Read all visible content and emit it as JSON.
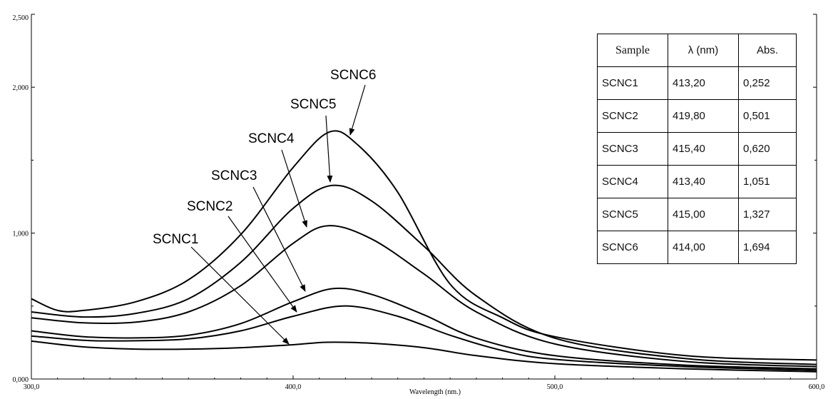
{
  "chart_data": {
    "type": "line",
    "xlabel": "Wavelength (nm.)",
    "ylabel": "",
    "xlim": [
      300,
      600
    ],
    "ylim": [
      0,
      2.5
    ],
    "x_ticks": [
      "300,0",
      "400,0",
      "500,0",
      "600,0"
    ],
    "y_ticks": [
      "0,000",
      "1,000",
      "2,000",
      "2,500"
    ],
    "grid": false,
    "series": [
      {
        "name": "SCNC1",
        "peak_nm": 413.2,
        "peak_abs": 0.252,
        "points": [
          [
            300,
            0.26
          ],
          [
            320,
            0.22
          ],
          [
            340,
            0.205
          ],
          [
            360,
            0.205
          ],
          [
            380,
            0.215
          ],
          [
            400,
            0.235
          ],
          [
            413.2,
            0.252
          ],
          [
            430,
            0.245
          ],
          [
            450,
            0.215
          ],
          [
            470,
            0.16
          ],
          [
            500,
            0.105
          ],
          [
            550,
            0.07
          ],
          [
            600,
            0.05
          ]
        ]
      },
      {
        "name": "SCNC2",
        "peak_nm": 419.8,
        "peak_abs": 0.501,
        "points": [
          [
            300,
            0.295
          ],
          [
            320,
            0.265
          ],
          [
            340,
            0.262
          ],
          [
            360,
            0.275
          ],
          [
            380,
            0.33
          ],
          [
            400,
            0.43
          ],
          [
            419.8,
            0.501
          ],
          [
            440,
            0.43
          ],
          [
            460,
            0.3
          ],
          [
            480,
            0.195
          ],
          [
            500,
            0.135
          ],
          [
            550,
            0.085
          ],
          [
            600,
            0.06
          ]
        ]
      },
      {
        "name": "SCNC3",
        "peak_nm": 415.4,
        "peak_abs": 0.62,
        "points": [
          [
            300,
            0.33
          ],
          [
            320,
            0.29
          ],
          [
            340,
            0.282
          ],
          [
            360,
            0.3
          ],
          [
            380,
            0.38
          ],
          [
            400,
            0.53
          ],
          [
            415.4,
            0.62
          ],
          [
            430,
            0.58
          ],
          [
            450,
            0.44
          ],
          [
            470,
            0.28
          ],
          [
            500,
            0.16
          ],
          [
            550,
            0.095
          ],
          [
            600,
            0.07
          ]
        ]
      },
      {
        "name": "SCNC4",
        "peak_nm": 413.4,
        "peak_abs": 1.051,
        "points": [
          [
            300,
            0.42
          ],
          [
            320,
            0.385
          ],
          [
            340,
            0.39
          ],
          [
            360,
            0.46
          ],
          [
            380,
            0.64
          ],
          [
            400,
            0.93
          ],
          [
            413.4,
            1.051
          ],
          [
            430,
            0.96
          ],
          [
            450,
            0.72
          ],
          [
            470,
            0.46
          ],
          [
            500,
            0.24
          ],
          [
            550,
            0.12
          ],
          [
            600,
            0.085
          ]
        ]
      },
      {
        "name": "SCNC5",
        "peak_nm": 415.0,
        "peak_abs": 1.327,
        "points": [
          [
            300,
            0.46
          ],
          [
            320,
            0.425
          ],
          [
            340,
            0.45
          ],
          [
            360,
            0.55
          ],
          [
            380,
            0.8
          ],
          [
            400,
            1.17
          ],
          [
            415,
            1.327
          ],
          [
            430,
            1.22
          ],
          [
            450,
            0.91
          ],
          [
            470,
            0.57
          ],
          [
            500,
            0.28
          ],
          [
            550,
            0.14
          ],
          [
            600,
            0.1
          ]
        ]
      },
      {
        "name": "SCNC6",
        "peak_nm": 414.0,
        "peak_abs": 1.694,
        "points": [
          [
            300,
            0.55
          ],
          [
            310,
            0.47
          ],
          [
            320,
            0.47
          ],
          [
            340,
            0.53
          ],
          [
            360,
            0.68
          ],
          [
            380,
            0.99
          ],
          [
            400,
            1.45
          ],
          [
            414,
            1.694
          ],
          [
            425,
            1.6
          ],
          [
            440,
            1.28
          ],
          [
            460,
            0.65
          ],
          [
            480,
            0.42
          ],
          [
            500,
            0.29
          ],
          [
            550,
            0.16
          ],
          [
            600,
            0.13
          ]
        ]
      }
    ]
  },
  "table": {
    "headers": [
      "Sample",
      "λ (nm)",
      "Abs."
    ],
    "rows": [
      [
        "SCNC1",
        "413,20",
        "0,252"
      ],
      [
        "SCNC2",
        "419,80",
        "0,501"
      ],
      [
        "SCNC3",
        "415,40",
        "0,620"
      ],
      [
        "SCNC4",
        "413,40",
        "1,051"
      ],
      [
        "SCNC5",
        "415,00",
        "1,327"
      ],
      [
        "SCNC6",
        "414,00",
        "1,694"
      ]
    ]
  },
  "callouts": [
    "SCNC1",
    "SCNC2",
    "SCNC3",
    "SCNC4",
    "SCNC5",
    "SCNC6"
  ]
}
